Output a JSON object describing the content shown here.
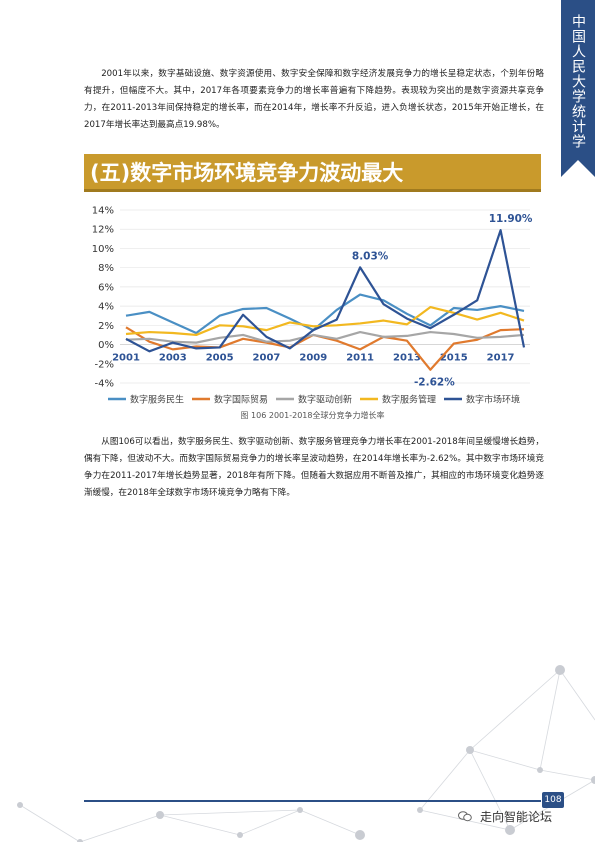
{
  "side_tab": {
    "label": "中国人民大学统计学院"
  },
  "paragraph_1": "2001年以来，数字基础设施、数字资源使用、数字安全保障和数字经济发展竞争力的增长呈稳定状态，个别年份略有提升，但幅度不大。其中，2017年各项要素竞争力的增长率普遍有下降趋势。表现较为突出的是数字资源共享竞争力，在2011-2013年间保持稳定的增长率，而在2014年，增长率不升反追，进入负增长状态，2015年开始正增长，在2017年增长率达到最高点19.98%。",
  "section_title": "(五)数字市场环境竞争力波动最大",
  "chart_caption": "图 106  2001-2018全球分竞争力增长率",
  "paragraph_2": "从图106可以看出，数字服务民生、数字驱动创新、数字服务管理竞争力增长率在2001-2018年间呈缓慢增长趋势，偶有下降，但波动不大。而数字国际贸易竞争力的增长率呈波动趋势，在2014年增长率为-2.62%。其中数字市场环境竞争力在2011-2017年增长趋势显著，2018年有所下降。但随着大数据应用不断普及推广，其相应的市场环境变化趋势逐渐缓慢，在2018年全球数字市场环境竞争力略有下降。",
  "footer": {
    "page_number": "108",
    "brand": "走向智能论坛"
  },
  "colors": {
    "brand_blue": "#2b4f86",
    "banner_gold": "#c99a2c"
  },
  "chart_data": {
    "type": "line",
    "title": "",
    "xlabel": "",
    "ylabel": "",
    "x": [
      2001,
      2002,
      2003,
      2004,
      2005,
      2006,
      2007,
      2008,
      2009,
      2010,
      2011,
      2012,
      2013,
      2014,
      2015,
      2016,
      2017,
      2018
    ],
    "x_ticks": [
      "2001",
      "2003",
      "2005",
      "2007",
      "2009",
      "2011",
      "2013",
      "2015",
      "2017"
    ],
    "y_ticks": [
      "14%",
      "12%",
      "10%",
      "8%",
      "6%",
      "4%",
      "2%",
      "0%",
      "-2%",
      "-4%"
    ],
    "ylim": [
      -4,
      14
    ],
    "grid": "horizontal",
    "legend_position": "bottom",
    "series": [
      {
        "name": "数字服务民生",
        "color": "#4a8fc4",
        "values": [
          3.0,
          3.4,
          2.3,
          1.2,
          3.0,
          3.7,
          3.8,
          2.7,
          1.5,
          3.6,
          5.2,
          4.6,
          3.2,
          2.0,
          3.8,
          3.6,
          4.0,
          3.5
        ]
      },
      {
        "name": "数字国际贸易",
        "color": "#e07a2e",
        "values": [
          1.8,
          0.3,
          -0.5,
          -0.2,
          -0.3,
          0.6,
          0.2,
          -0.3,
          1.0,
          0.4,
          -0.5,
          0.8,
          0.4,
          -2.62,
          0.1,
          0.5,
          1.5,
          1.6
        ]
      },
      {
        "name": "数字驱动创新",
        "color": "#a6a6a6",
        "values": [
          0.5,
          0.6,
          0.3,
          0.2,
          0.7,
          1.0,
          0.3,
          0.4,
          1.0,
          0.6,
          1.3,
          0.8,
          0.9,
          1.3,
          1.1,
          0.7,
          0.8,
          1.0
        ]
      },
      {
        "name": "数字服务管理",
        "color": "#f2b820",
        "values": [
          1.1,
          1.3,
          1.2,
          1.0,
          2.0,
          1.9,
          1.5,
          2.3,
          1.9,
          2.0,
          2.2,
          2.5,
          2.1,
          3.9,
          3.3,
          2.6,
          3.3,
          2.5
        ]
      },
      {
        "name": "数字市场环境",
        "color": "#2e5395",
        "values": [
          0.6,
          -0.7,
          0.2,
          -0.4,
          -0.3,
          3.1,
          0.8,
          -0.4,
          1.5,
          2.6,
          8.03,
          4.2,
          2.7,
          1.7,
          3.1,
          4.6,
          11.9,
          -0.3
        ]
      }
    ],
    "annotations": [
      {
        "text": "8.03%",
        "x": 2011,
        "y": 8.03,
        "color": "#2e5395"
      },
      {
        "text": "11.90%",
        "x": 2017,
        "y": 11.9,
        "color": "#2e5395"
      },
      {
        "text": "-2.62%",
        "x": 2014,
        "y": -2.62,
        "color": "#2e5395"
      }
    ]
  }
}
